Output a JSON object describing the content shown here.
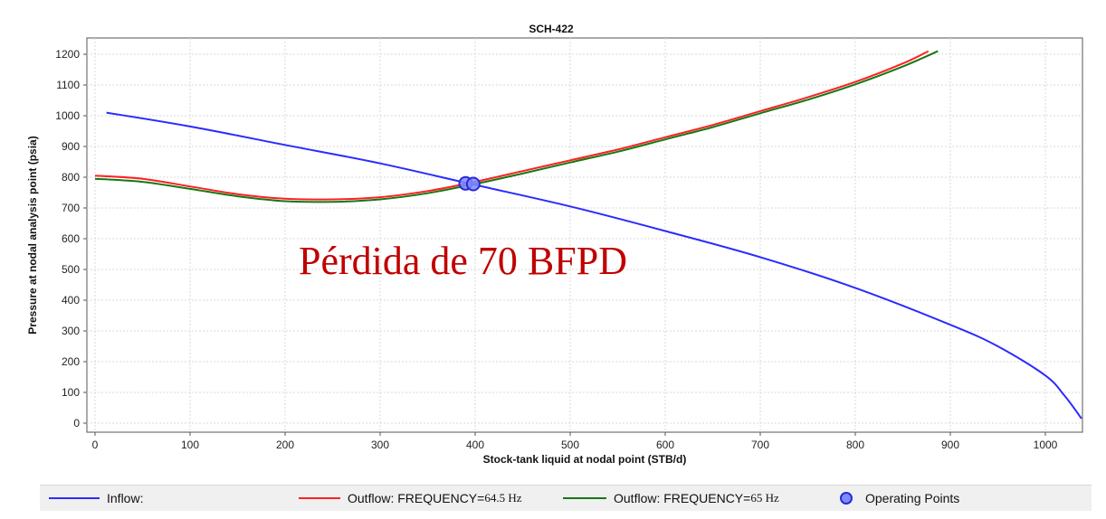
{
  "chart_data": {
    "type": "line",
    "title": "SCH-422",
    "xlabel": "Stock-tank liquid at nodal point (STB/d)",
    "ylabel": "Pressure at nodal analysis point (psia)",
    "xlim": [
      0,
      1050
    ],
    "ylim": [
      0,
      1250
    ],
    "x_ticks": [
      0,
      100,
      200,
      300,
      400,
      500,
      600,
      700,
      800,
      900,
      1000
    ],
    "y_ticks": [
      0,
      100,
      200,
      300,
      400,
      500,
      600,
      700,
      800,
      900,
      1000,
      1100,
      1200
    ],
    "grid": true,
    "legend_position": "bottom",
    "annotation": "Pérdida de 70 BFPD",
    "series": [
      {
        "name": "Inflow:",
        "color": "#2b2bff",
        "x": [
          12,
          100,
          200,
          300,
          400,
          500,
          600,
          700,
          800,
          900,
          950,
          1000,
          1020,
          1038
        ],
        "y": [
          1010,
          965,
          905,
          845,
          775,
          705,
          625,
          540,
          440,
          320,
          250,
          155,
          90,
          15
        ]
      },
      {
        "name": "Outflow: FREQUENCY= 64.5 Hz",
        "color": "#ff2020",
        "x": [
          0,
          50,
          100,
          150,
          200,
          250,
          300,
          350,
          400,
          450,
          500,
          550,
          600,
          650,
          700,
          750,
          800,
          850,
          877
        ],
        "y": [
          805,
          795,
          770,
          745,
          730,
          728,
          735,
          755,
          785,
          820,
          855,
          890,
          930,
          970,
          1015,
          1060,
          1110,
          1170,
          1210
        ]
      },
      {
        "name": "Outflow: FREQUENCY=65 Hz",
        "color": "#147814",
        "x": [
          0,
          50,
          100,
          150,
          200,
          250,
          300,
          350,
          400,
          450,
          500,
          550,
          600,
          650,
          700,
          750,
          800,
          850,
          887
        ],
        "y": [
          795,
          785,
          762,
          738,
          722,
          720,
          728,
          748,
          778,
          812,
          848,
          883,
          923,
          963,
          1008,
          1052,
          1102,
          1160,
          1210
        ]
      }
    ],
    "operating_points": {
      "name": "Operating Points",
      "points": [
        {
          "x": 390,
          "y": 780
        },
        {
          "x": 398,
          "y": 778
        }
      ]
    }
  },
  "legend": {
    "inflow_label": "Inflow:",
    "outflow_64_label": "Outflow: FREQUENCY=",
    "outflow_64_value": "64.5 Hz",
    "outflow_65_label": "Outflow: FREQUENCY=",
    "outflow_65_value": "65 Hz",
    "operating_label": "Operating Points"
  }
}
